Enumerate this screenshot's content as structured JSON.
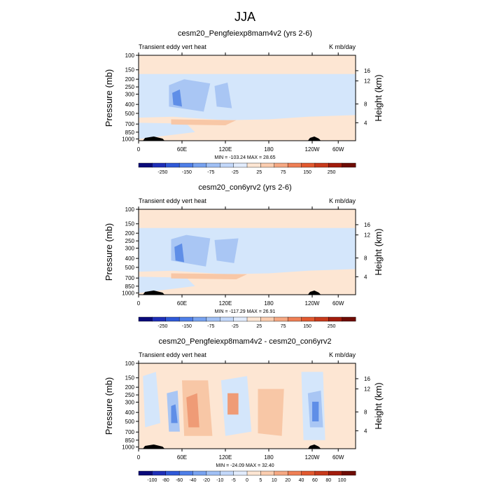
{
  "figure_title": "JJA",
  "chart_data": [
    {
      "type": "heatmap",
      "title": "cesm20_Pengfeiexp8mam4v2 (yrs 2-6)",
      "left_label": "Transient eddy vert heat",
      "right_label": "K mb/day",
      "ylabel": "Pressure (mb)",
      "y2label": "Height (km)",
      "yticks": [
        "100",
        "150",
        "200",
        "250",
        "300",
        "400",
        "500",
        "700",
        "850",
        "1000"
      ],
      "y2ticks": [
        "16",
        "12",
        "8",
        "4"
      ],
      "xticks": [
        "0",
        "60E",
        "120E",
        "180",
        "120W",
        "60W"
      ],
      "stats": "MIN = -103.24  MAX =  28.65",
      "colorbar_labels": [
        "-250",
        "-150",
        "-75",
        "-25",
        "25",
        "75",
        "150",
        "250"
      ],
      "colors": {
        "background": "#fde6d3",
        "light_blue": "#d4e6fb",
        "mid_blue": "#a9c6f4",
        "deep_blue": "#5f8ee7",
        "light_red": "#f8c7a6",
        "terrain": "#000000"
      }
    },
    {
      "type": "heatmap",
      "title": "cesm20_con6yrv2 (yrs 2-6)",
      "left_label": "Transient eddy vert heat",
      "right_label": "K mb/day",
      "ylabel": "Pressure (mb)",
      "y2label": "Height (km)",
      "yticks": [
        "100",
        "150",
        "200",
        "250",
        "300",
        "400",
        "500",
        "700",
        "850",
        "1000"
      ],
      "y2ticks": [
        "16",
        "12",
        "8",
        "4"
      ],
      "xticks": [
        "0",
        "60E",
        "120E",
        "180",
        "120W",
        "60W"
      ],
      "stats": "MIN = -117.29  MAX =  26.91",
      "colorbar_labels": [
        "-250",
        "-150",
        "-75",
        "-25",
        "25",
        "75",
        "150",
        "250"
      ],
      "colors": {
        "background": "#fde6d3",
        "light_blue": "#d4e6fb",
        "mid_blue": "#a9c6f4",
        "deep_blue": "#5f8ee7",
        "light_red": "#f8c7a6",
        "terrain": "#000000"
      }
    },
    {
      "type": "heatmap",
      "title": "cesm20_Pengfeiexp8mam4v2 - cesm20_con6yrv2",
      "left_label": "Transient eddy vert heat",
      "right_label": "K mb/day",
      "ylabel": "Pressure (mb)",
      "y2label": "Height (km)",
      "yticks": [
        "100",
        "150",
        "200",
        "250",
        "300",
        "400",
        "500",
        "700",
        "850",
        "1000"
      ],
      "y2ticks": [
        "16",
        "12",
        "8",
        "4"
      ],
      "xticks": [
        "0",
        "60E",
        "120E",
        "180",
        "120W",
        "60W"
      ],
      "stats": "MIN = -24.09  MAX =  32.40",
      "colorbar_labels": [
        "-100",
        "-80",
        "-60",
        "-40",
        "-20",
        "-10",
        "-5",
        "0",
        "5",
        "10",
        "20",
        "40",
        "60",
        "80",
        "100"
      ],
      "colors": {
        "background": "#fde6d3",
        "light_blue": "#d4e6fb",
        "mid_blue": "#a9c6f4",
        "deep_blue": "#5f8ee7",
        "light_red": "#f8c7a6",
        "mid_red": "#ef9b76",
        "terrain": "#000000"
      }
    }
  ],
  "colorbar_palette": [
    "#0a0a7a",
    "#1f2fb8",
    "#2f59d8",
    "#4f7fe8",
    "#78a2f0",
    "#a0c0f5",
    "#c3d8fa",
    "#e2ecfc",
    "#fde6d3",
    "#fbcdb0",
    "#f6a883",
    "#ef7f55",
    "#e2592f",
    "#c73a1c",
    "#a21c0c",
    "#6e0c05"
  ]
}
